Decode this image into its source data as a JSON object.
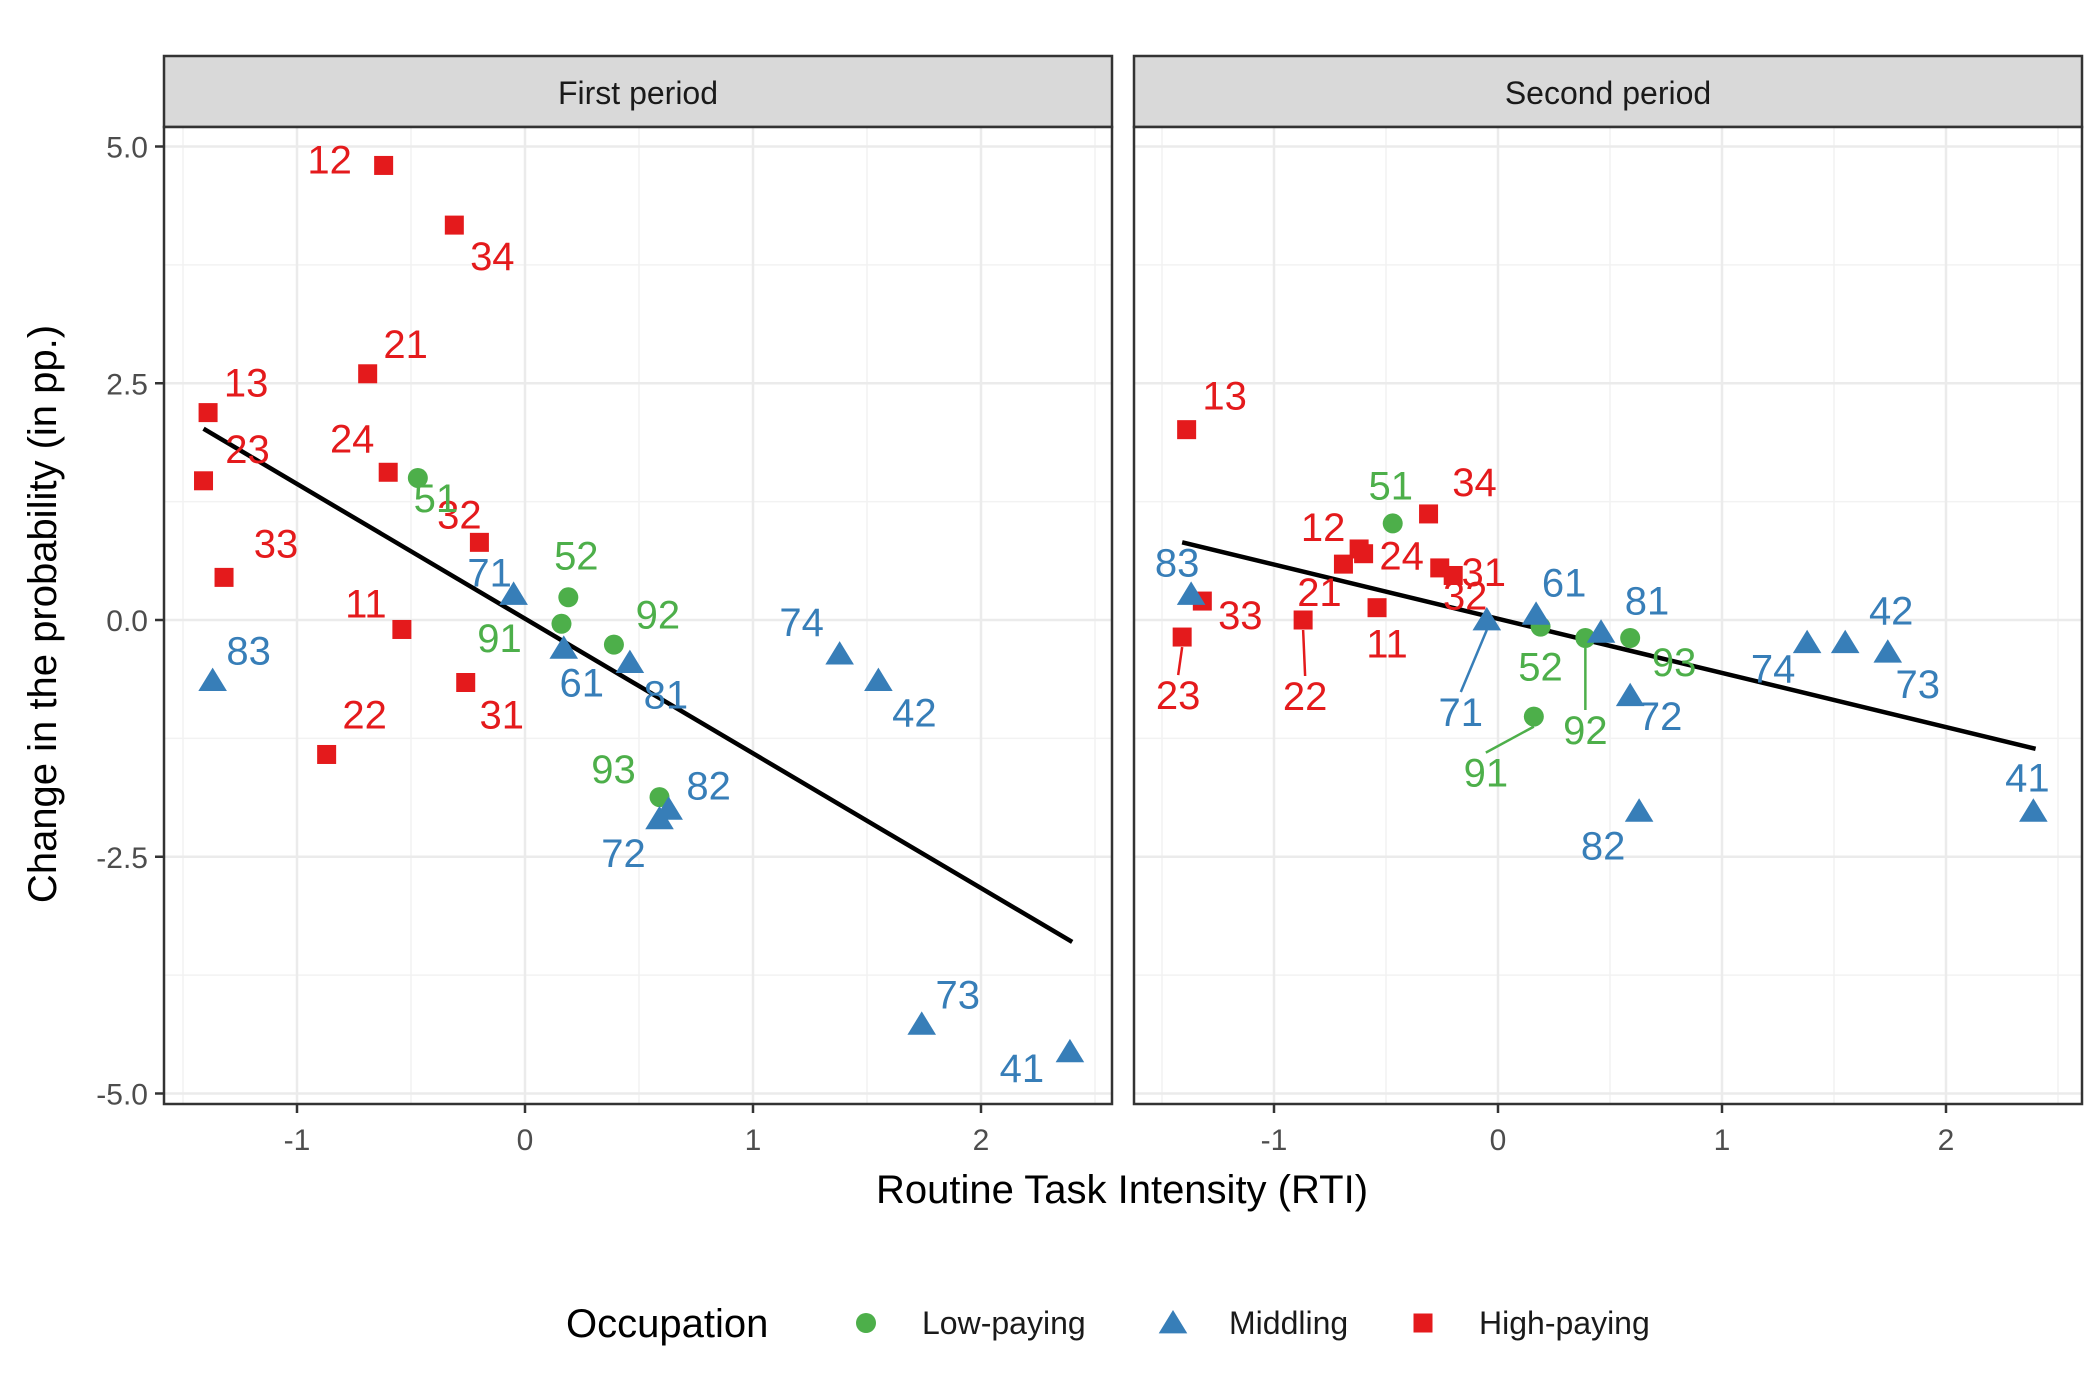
{
  "chart_data": {
    "type": "scatter",
    "facet_titles": [
      "First period",
      "Second period"
    ],
    "xlabel": "Routine Task Intensity (RTI)",
    "ylabel": "Change in the probability (in pp.)",
    "xlim": [
      -1.6,
      2.55
    ],
    "ylim": [
      -5.1,
      5.3
    ],
    "x_ticks": [
      -1,
      0,
      1,
      2
    ],
    "x_tick_labels": [
      "-1",
      "0",
      "1",
      "2"
    ],
    "y_ticks": [
      5.0,
      2.5,
      0.0,
      -2.5,
      -5.0
    ],
    "y_tick_labels": [
      "5.0",
      "2.5",
      "0.0",
      "-2.5",
      "-5.0"
    ],
    "grid": true,
    "legend": {
      "title": "Occupation",
      "position": "bottom",
      "entries": [
        {
          "label": "Low-paying",
          "color": "#4daf4a",
          "shape": "circle"
        },
        {
          "label": "Middling",
          "color": "#377eb8",
          "shape": "triangle"
        },
        {
          "label": "High-paying",
          "color": "#e41a1c",
          "shape": "square"
        }
      ]
    },
    "group_colors": {
      "low": "#4daf4a",
      "mid": "#377eb8",
      "high": "#e41a1c"
    },
    "panels": [
      {
        "title": "First period",
        "fit_line": {
          "x": [
            -1.41,
            2.4
          ],
          "y": [
            2.02,
            -3.4
          ]
        },
        "points": [
          {
            "label": "12",
            "group": "high",
            "x": -0.62,
            "y": 4.8
          },
          {
            "label": "34",
            "group": "high",
            "x": -0.31,
            "y": 4.17
          },
          {
            "label": "21",
            "group": "high",
            "x": -0.69,
            "y": 2.6
          },
          {
            "label": "13",
            "group": "high",
            "x": -1.39,
            "y": 2.19
          },
          {
            "label": "23",
            "group": "high",
            "x": -1.41,
            "y": 1.47
          },
          {
            "label": "24",
            "group": "high",
            "x": -0.6,
            "y": 1.56
          },
          {
            "label": "32",
            "group": "high",
            "x": -0.2,
            "y": 0.82
          },
          {
            "label": "33",
            "group": "high",
            "x": -1.32,
            "y": 0.45
          },
          {
            "label": "11",
            "group": "high",
            "x": -0.54,
            "y": -0.1
          },
          {
            "label": "31",
            "group": "high",
            "x": -0.26,
            "y": -0.66
          },
          {
            "label": "22",
            "group": "high",
            "x": -0.87,
            "y": -1.42
          },
          {
            "label": "51",
            "group": "low",
            "x": -0.47,
            "y": 1.5
          },
          {
            "label": "52",
            "group": "low",
            "x": 0.19,
            "y": 0.24
          },
          {
            "label": "91",
            "group": "low",
            "x": 0.16,
            "y": -0.04
          },
          {
            "label": "92",
            "group": "low",
            "x": 0.39,
            "y": -0.26
          },
          {
            "label": "93",
            "group": "low",
            "x": 0.59,
            "y": -1.87
          },
          {
            "label": "71",
            "group": "mid",
            "x": -0.05,
            "y": 0.27
          },
          {
            "label": "61",
            "group": "mid",
            "x": 0.17,
            "y": -0.3
          },
          {
            "label": "81",
            "group": "mid",
            "x": 0.46,
            "y": -0.45
          },
          {
            "label": "74",
            "group": "mid",
            "x": 1.38,
            "y": -0.36
          },
          {
            "label": "42",
            "group": "mid",
            "x": 1.55,
            "y": -0.64
          },
          {
            "label": "82",
            "group": "mid",
            "x": 0.63,
            "y": -2.0
          },
          {
            "label": "72",
            "group": "mid",
            "x": 0.59,
            "y": -2.1
          },
          {
            "label": "83",
            "group": "mid",
            "x": -1.37,
            "y": -0.64
          },
          {
            "label": "73",
            "group": "mid",
            "x": 1.74,
            "y": -4.27
          },
          {
            "label": "41",
            "group": "mid",
            "x": 2.39,
            "y": -4.56
          }
        ]
      },
      {
        "title": "Second period",
        "fit_line": {
          "x": [
            -1.41,
            2.4
          ],
          "y": [
            0.82,
            -1.36
          ]
        },
        "points": [
          {
            "label": "13",
            "group": "high",
            "x": -1.39,
            "y": 2.01
          },
          {
            "label": "34",
            "group": "high",
            "x": -0.31,
            "y": 1.12
          },
          {
            "label": "12",
            "group": "high",
            "x": -0.62,
            "y": 0.75
          },
          {
            "label": "31",
            "group": "high",
            "x": -0.26,
            "y": 0.55
          },
          {
            "label": "24",
            "group": "high",
            "x": -0.6,
            "y": 0.7
          },
          {
            "label": "21",
            "group": "high",
            "x": -0.69,
            "y": 0.59
          },
          {
            "label": "32",
            "group": "high",
            "x": -0.2,
            "y": 0.47
          },
          {
            "label": "33",
            "group": "high",
            "x": -1.32,
            "y": 0.2
          },
          {
            "label": "11",
            "group": "high",
            "x": -0.54,
            "y": 0.13
          },
          {
            "label": "22",
            "group": "high",
            "x": -0.87,
            "y": 0.0
          },
          {
            "label": "23",
            "group": "high",
            "x": -1.41,
            "y": -0.18
          },
          {
            "label": "51",
            "group": "low",
            "x": -0.47,
            "y": 1.02
          },
          {
            "label": "52",
            "group": "low",
            "x": 0.19,
            "y": -0.07
          },
          {
            "label": "92",
            "group": "low",
            "x": 0.39,
            "y": -0.19
          },
          {
            "label": "93",
            "group": "low",
            "x": 0.59,
            "y": -0.19
          },
          {
            "label": "91",
            "group": "low",
            "x": 0.16,
            "y": -1.02
          },
          {
            "label": "83",
            "group": "mid",
            "x": -1.37,
            "y": 0.27
          },
          {
            "label": "71",
            "group": "mid",
            "x": -0.05,
            "y": 0.0
          },
          {
            "label": "61",
            "group": "mid",
            "x": 0.17,
            "y": 0.06
          },
          {
            "label": "81",
            "group": "mid",
            "x": 0.46,
            "y": -0.13
          },
          {
            "label": "72",
            "group": "mid",
            "x": 0.59,
            "y": -0.8
          },
          {
            "label": "82",
            "group": "mid",
            "x": 0.63,
            "y": -2.02
          },
          {
            "label": "74",
            "group": "mid",
            "x": 1.38,
            "y": -0.24
          },
          {
            "label": "42",
            "group": "mid",
            "x": 1.55,
            "y": -0.24
          },
          {
            "label": "73",
            "group": "mid",
            "x": 1.74,
            "y": -0.34
          },
          {
            "label": "41",
            "group": "mid",
            "x": 2.39,
            "y": -2.02
          }
        ]
      }
    ]
  }
}
